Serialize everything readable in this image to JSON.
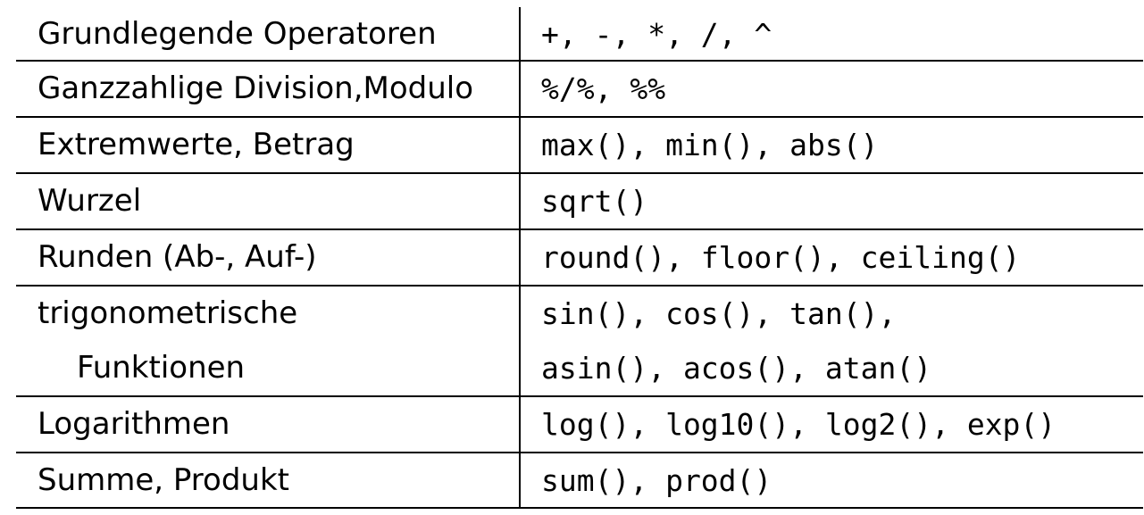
{
  "rows": [
    {
      "label": "Grundlegende Operatoren",
      "functions": "+, -, *, /, ^"
    },
    {
      "label": "Ganzzahlige Division,Modulo",
      "functions": "%/%, %%"
    },
    {
      "label": "Extremwerte, Betrag",
      "functions": "max(), min(), abs()"
    },
    {
      "label": "Wurzel",
      "functions": "sqrt()"
    },
    {
      "label": "Runden (Ab-, Auf-)",
      "functions": "round(), floor(), ceiling()"
    },
    {
      "label_line1": "trigonometrische",
      "label_line2": "Funktionen",
      "functions_line1": "sin(), cos(), tan(),",
      "functions_line2": "asin(), acos(), atan()"
    },
    {
      "label": "Logarithmen",
      "functions": "log(), log10(), log2(), exp()"
    },
    {
      "label": "Summe, Produkt",
      "functions": "sum(), prod()"
    }
  ]
}
